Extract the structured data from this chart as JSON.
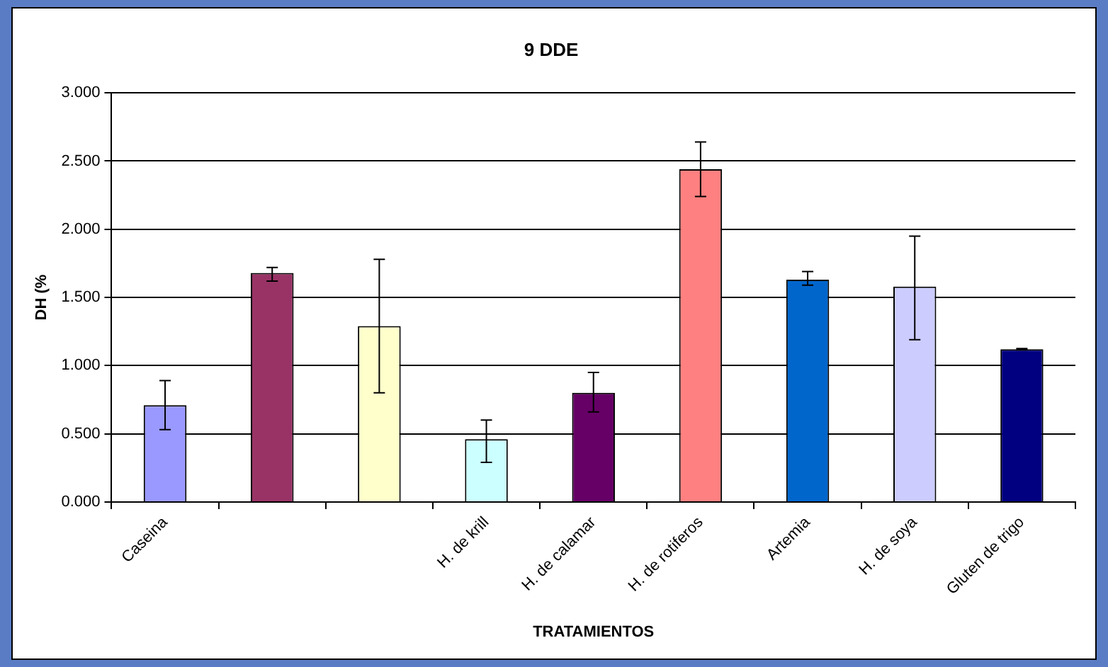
{
  "chart_data": {
    "type": "bar",
    "title": "9 DDE",
    "xlabel": "TRATAMIENTOS",
    "ylabel": "DH (%",
    "categories": [
      "Caseina",
      null,
      null,
      "H. de krill",
      "H. de calamar",
      "H. de rotiferos",
      "Artemia",
      "H. de soya",
      "Gluten de trigo"
    ],
    "values": [
      0.71,
      1.68,
      1.29,
      0.46,
      0.8,
      2.44,
      1.63,
      1.58,
      1.12
    ],
    "colors": [
      "#9999ff",
      "#993366",
      "#ffffcc",
      "#ccffff",
      "#660066",
      "#ff8080",
      "#0066cc",
      "#ccccff",
      "#000080"
    ],
    "errors": [
      [
        0.53,
        0.89
      ],
      [
        1.62,
        1.72
      ],
      [
        0.8,
        1.78
      ],
      [
        0.29,
        0.6
      ],
      [
        0.66,
        0.95
      ],
      [
        2.24,
        2.64
      ],
      [
        1.59,
        1.69
      ],
      [
        1.19,
        1.95
      ],
      [
        1.115,
        1.125
      ]
    ],
    "ylim": [
      0,
      3
    ],
    "yticks": [
      {
        "value": 0,
        "label": "0.000"
      },
      {
        "value": 0.5,
        "label": "0.500"
      },
      {
        "value": 1,
        "label": "1.000"
      },
      {
        "value": 1.5,
        "label": "1.500"
      },
      {
        "value": 2,
        "label": "2.000"
      },
      {
        "value": 2.5,
        "label": "2.500"
      },
      {
        "value": 3,
        "label": "3.000"
      }
    ],
    "grid": "y",
    "legend": false
  }
}
